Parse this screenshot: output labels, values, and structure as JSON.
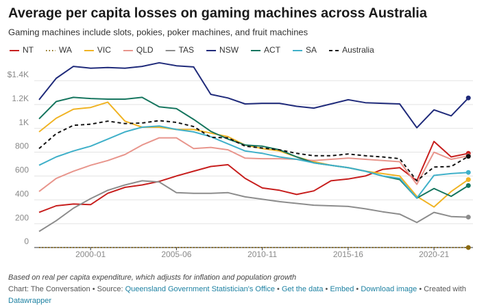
{
  "chart_data": {
    "type": "line",
    "title": "Average per capita losses on gaming machines across Australia",
    "subtitle": "Gaming machines include slots, pokies, poker machines, and fruit machines",
    "categories": [
      null,
      null,
      null,
      "2000-01",
      null,
      null,
      null,
      null,
      "2005-06",
      null,
      null,
      null,
      null,
      "2010-11",
      null,
      null,
      null,
      null,
      "2015-16",
      null,
      null,
      null,
      null,
      "2020-21",
      null,
      null
    ],
    "ylim": [
      0,
      1560
    ],
    "yticks": [
      0,
      200,
      400,
      600,
      800,
      {
        "value": 1000,
        "label": "1K"
      },
      {
        "value": 1200,
        "label": "1.2K"
      },
      {
        "value": 1400,
        "label": "$1.4K"
      }
    ],
    "grid": true,
    "series": [
      {
        "name": "NT",
        "color": "#c71e1d",
        "dash": "solid",
        "values": [
          295,
          350,
          365,
          360,
          455,
          505,
          525,
          555,
          600,
          640,
          680,
          695,
          580,
          500,
          480,
          445,
          475,
          560,
          575,
          600,
          655,
          670,
          560,
          890,
          760,
          790
        ]
      },
      {
        "name": "WA",
        "color": "#8a6a10",
        "dash": "dotted",
        "values": [
          0,
          0,
          0,
          0,
          0,
          0,
          0,
          0,
          0,
          0,
          0,
          0,
          0,
          0,
          0,
          0,
          0,
          0,
          0,
          0,
          0,
          0,
          0,
          0,
          0,
          0
        ]
      },
      {
        "name": "VIC",
        "color": "#f0b323",
        "dash": "solid",
        "values": [
          970,
          1085,
          1160,
          1175,
          1220,
          1060,
          1010,
          1010,
          990,
          990,
          960,
          930,
          860,
          830,
          810,
          760,
          720,
          690,
          670,
          640,
          620,
          600,
          430,
          340,
          470,
          570
        ]
      },
      {
        "name": "QLD",
        "color": "#e8958c",
        "dash": "solid",
        "values": [
          470,
          580,
          640,
          690,
          730,
          780,
          860,
          920,
          920,
          830,
          840,
          820,
          750,
          745,
          745,
          740,
          730,
          740,
          750,
          740,
          730,
          720,
          530,
          800,
          740,
          770
        ]
      },
      {
        "name": "TAS",
        "color": "#8c8c8c",
        "dash": "solid",
        "values": [
          135,
          225,
          330,
          410,
          480,
          525,
          560,
          550,
          460,
          455,
          455,
          460,
          425,
          405,
          385,
          370,
          355,
          350,
          345,
          325,
          300,
          280,
          210,
          295,
          260,
          255
        ]
      },
      {
        "name": "NSW",
        "color": "#1f2a7a",
        "dash": "solid",
        "values": [
          1240,
          1420,
          1520,
          1505,
          1510,
          1505,
          1520,
          1550,
          1525,
          1515,
          1285,
          1255,
          1205,
          1210,
          1210,
          1185,
          1170,
          1205,
          1240,
          1215,
          1210,
          1205,
          1005,
          1155,
          1105,
          1255
        ]
      },
      {
        "name": "ACT",
        "color": "#15755e",
        "dash": "solid",
        "values": [
          1080,
          1225,
          1260,
          1250,
          1245,
          1245,
          1260,
          1180,
          1165,
          1075,
          975,
          910,
          860,
          850,
          820,
          760,
          710,
          690,
          670,
          640,
          600,
          570,
          415,
          495,
          430,
          520
        ]
      },
      {
        "name": "SA",
        "color": "#3fb0c9",
        "dash": "solid",
        "values": [
          690,
          760,
          810,
          850,
          910,
          970,
          1010,
          1020,
          990,
          970,
          930,
          870,
          810,
          790,
          760,
          740,
          710,
          690,
          670,
          640,
          600,
          580,
          415,
          605,
          620,
          630
        ]
      },
      {
        "name": "Australia",
        "color": "#111111",
        "dash": "dashed",
        "values": [
          830,
          955,
          1025,
          1035,
          1060,
          1040,
          1045,
          1065,
          1050,
          1015,
          925,
          920,
          850,
          835,
          820,
          790,
          770,
          770,
          785,
          770,
          760,
          745,
          560,
          675,
          680,
          765
        ]
      }
    ]
  },
  "footer": {
    "note": "Based on real per capita expenditure, which adjusts for inflation and population growth",
    "credit": "Chart: The Conversation",
    "separator": "•",
    "source_label": "Source:",
    "source": "Queensland Government Statistician's Office",
    "links": [
      "Get the data",
      "Embed",
      "Download image"
    ],
    "created": "Created with",
    "tool": "Datawrapper"
  }
}
